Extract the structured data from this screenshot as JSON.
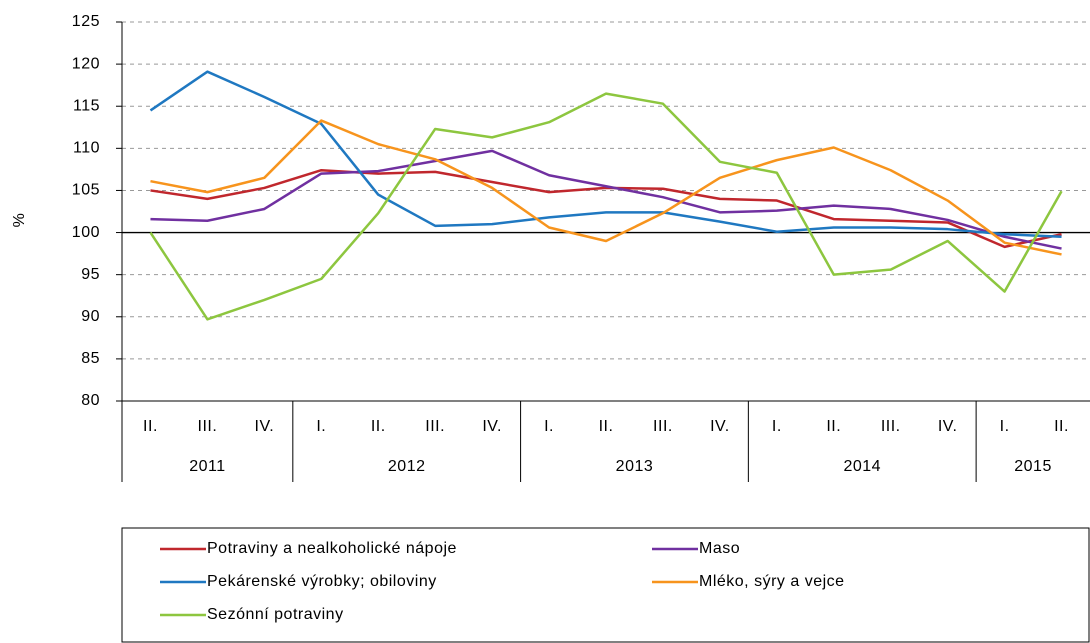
{
  "chart_data": {
    "type": "line",
    "y_label": "%",
    "groups": [
      {
        "label": "2011",
        "categories": [
          "II.",
          "III.",
          "IV."
        ]
      },
      {
        "label": "2012",
        "categories": [
          "I.",
          "II.",
          "III.",
          "IV."
        ]
      },
      {
        "label": "2013",
        "categories": [
          "I.",
          "II.",
          "III.",
          "IV."
        ]
      },
      {
        "label": "2014",
        "categories": [
          "I.",
          "II.",
          "III.",
          "IV."
        ]
      },
      {
        "label": "2015",
        "categories": [
          "I.",
          "II."
        ]
      }
    ],
    "series": [
      {
        "name": "Potraviny a nealkoholické nápoje",
        "color": "#c0272d",
        "values": [
          105,
          104,
          105.3,
          107.4,
          107,
          107.2,
          106,
          104.8,
          105.3,
          105.2,
          104,
          103.8,
          101.6,
          101.4,
          101.2,
          98.3,
          99.8
        ]
      },
      {
        "name": "Maso",
        "color": "#7030a0",
        "values": [
          101.6,
          101.4,
          102.8,
          107,
          107.3,
          108.5,
          109.7,
          106.8,
          105.5,
          104.2,
          102.4,
          102.6,
          103.2,
          102.8,
          101.5,
          99.5,
          98.1
        ]
      },
      {
        "name": "Pekárenské výrobky; obiloviny",
        "color": "#1f78c1",
        "values": [
          114.5,
          119.1,
          116.1,
          112.9,
          104.5,
          100.8,
          101,
          101.8,
          102.4,
          102.4,
          101.3,
          100.1,
          100.6,
          100.6,
          100.4,
          99.8,
          99.5
        ]
      },
      {
        "name": "Mléko, sýry a vejce",
        "color": "#f7941d",
        "values": [
          106.1,
          104.8,
          106.5,
          113.3,
          110.5,
          108.7,
          105.3,
          100.6,
          99,
          102.3,
          106.5,
          108.6,
          110.1,
          107.4,
          103.8,
          98.8,
          97.4
        ]
      },
      {
        "name": "Sezónní potraviny",
        "color": "#8dc63f",
        "values": [
          100,
          89.7,
          92,
          94.5,
          102.3,
          112.3,
          111.3,
          113.1,
          116.5,
          115.3,
          108.4,
          107.1,
          95,
          95.6,
          99,
          93,
          104.9
        ]
      }
    ],
    "ylim": [
      80,
      125
    ],
    "yticks": [
      80,
      85,
      90,
      95,
      100,
      105,
      110,
      115,
      120,
      125
    ],
    "reference_line": 100,
    "grid": true,
    "legend": "bottom"
  }
}
